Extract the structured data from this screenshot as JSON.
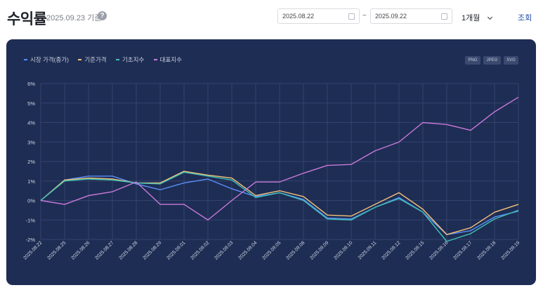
{
  "header": {
    "title": "수익률",
    "as_of": "2025.09.23 기준",
    "help_icon_glyph": "?",
    "start_date": "2025.08.22",
    "date_separator": "~",
    "end_date": "2025.09.22",
    "period": "1개월",
    "search_label": "조회"
  },
  "export": {
    "png": "PNG",
    "jpeg": "JPEG",
    "svg": "SVG"
  },
  "chart_data": {
    "type": "line",
    "title": "",
    "xlabel": "",
    "ylabel": "",
    "ylim": [
      -2,
      6
    ],
    "y_ticks": [
      "6%",
      "5%",
      "4%",
      "3%",
      "2%",
      "1%",
      "0%",
      "-1%",
      "-2%"
    ],
    "grid": true,
    "legend_position": "top-left",
    "categories": [
      "2025.08.22",
      "2025.08.25",
      "2025.08.26",
      "2025.08.27",
      "2025.08.28",
      "2025.08.29",
      "2025.09.01",
      "2025.09.02",
      "2025.09.03",
      "2025.09.04",
      "2025.09.05",
      "2025.09.08",
      "2025.09.09",
      "2025.09.10",
      "2025.09.11",
      "2025.09.12",
      "2025.09.15",
      "2025.09.16",
      "2025.09.17",
      "2025.09.18",
      "2025.09.19"
    ],
    "series": [
      {
        "name": "시장 가격(종가)",
        "color": "#5b8ff9",
        "values": [
          0,
          1.05,
          1.25,
          1.25,
          0.85,
          0.55,
          0.9,
          1.1,
          0.6,
          0.2,
          0.4,
          0.05,
          -0.9,
          -0.95,
          -0.35,
          0.15,
          -0.6,
          -1.75,
          -1.55,
          -0.85,
          -0.55
        ]
      },
      {
        "name": "기준가격",
        "color": "#f6c27a",
        "values": [
          0,
          1.05,
          1.15,
          1.1,
          0.9,
          0.9,
          1.5,
          1.3,
          1.15,
          0.25,
          0.5,
          0.2,
          -0.75,
          -0.8,
          -0.2,
          0.4,
          -0.45,
          -1.75,
          -1.4,
          -0.6,
          -0.2
        ]
      },
      {
        "name": "기초지수",
        "color": "#3fc2b5",
        "values": [
          0,
          1.0,
          1.1,
          1.05,
          0.9,
          0.85,
          1.45,
          1.25,
          1.05,
          0.15,
          0.4,
          0.0,
          -0.95,
          -1.0,
          -0.35,
          0.1,
          -0.6,
          -2.1,
          -1.7,
          -0.95,
          -0.5
        ]
      },
      {
        "name": "대표지수",
        "color": "#c979d9",
        "values": [
          0,
          -0.2,
          0.25,
          0.45,
          0.95,
          -0.2,
          -0.2,
          -1.0,
          0.0,
          0.95,
          0.95,
          1.4,
          1.8,
          1.85,
          2.55,
          3.0,
          4.0,
          3.9,
          3.6,
          4.55,
          5.3
        ]
      }
    ]
  }
}
